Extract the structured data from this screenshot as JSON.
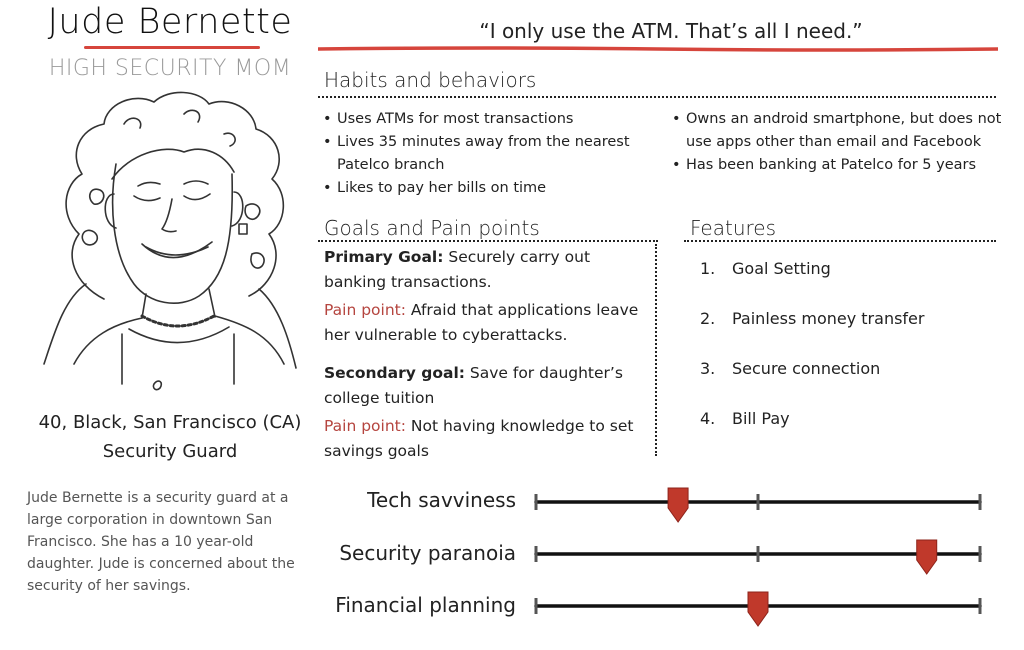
{
  "persona": {
    "name": "Jude Bernette",
    "role": "HIGH SECURITY MOM",
    "demographics": "40, Black, San Francisco (CA)",
    "occupation": "Security Guard",
    "bio": "Jude Bernette is  a security guard at a large corporation in downtown San Francisco. She has a 10 year-old daughter. Jude is concerned about the security of her savings."
  },
  "quote": "“I only use the ATM. That’s all I need.”",
  "habits": {
    "heading": "Habits and behaviors",
    "left": [
      "Uses ATMs for most transactions",
      "Lives 35 minutes away from the nearest Patelco branch",
      "Likes to pay her bills on time"
    ],
    "right": [
      "Owns an android smartphone, but does not use apps other than email and Facebook",
      "Has been banking at Patelco for 5 years"
    ]
  },
  "goals": {
    "heading": "Goals and Pain points",
    "primary_label": "Primary Goal:",
    "primary_text": " Securely carry out banking transactions.",
    "pain1_label": "Pain point:",
    "pain1_text": " Afraid that applications leave her vulnerable to cyberattacks.",
    "secondary_label": "Secondary goal:",
    "secondary_text": " Save for daughter’s college tuition",
    "pain2_label": "Pain point:",
    "pain2_text": " Not having knowledge to set savings goals"
  },
  "features": {
    "heading": "Features",
    "items": [
      {
        "num": "1.",
        "label": "Goal Setting"
      },
      {
        "num": "2.",
        "label": "Painless money transfer"
      },
      {
        "num": "3.",
        "label": "Secure connection"
      },
      {
        "num": "4.",
        "label": "Bill Pay"
      }
    ]
  },
  "sliders": [
    {
      "label": "Tech savviness",
      "level": 0.32
    },
    {
      "label": "Security paranoia",
      "level": 0.88
    },
    {
      "label": "Financial planning",
      "level": 0.5
    }
  ],
  "colors": {
    "accent_red": "#cc3b33",
    "marker_red": "#c0392b",
    "text": "#222222",
    "muted": "#9a9a9a"
  }
}
